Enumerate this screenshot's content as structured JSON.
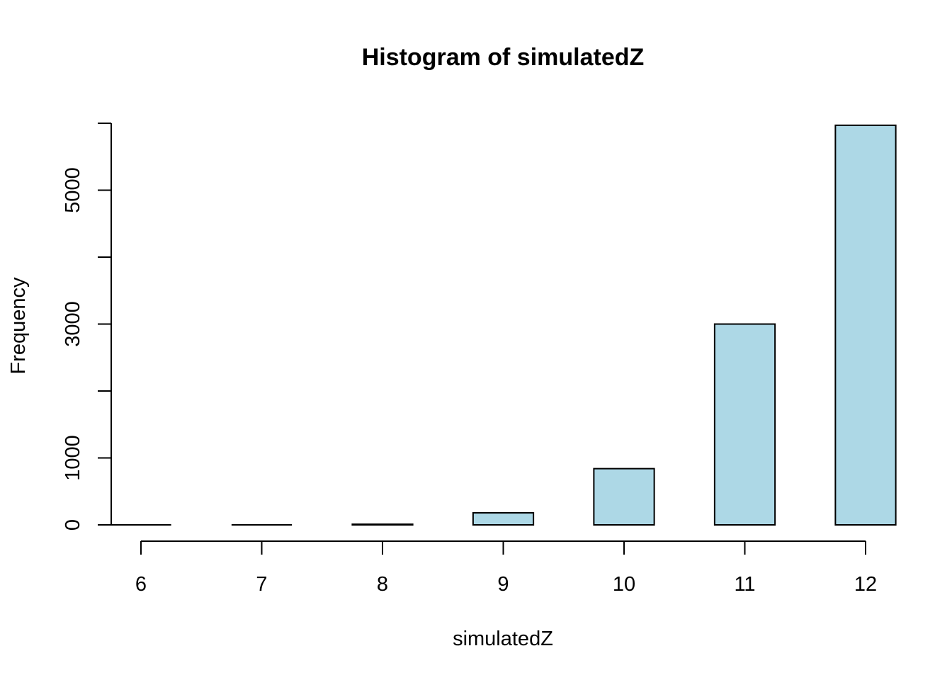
{
  "chart_data": {
    "type": "bar",
    "title": "Histogram of simulatedZ",
    "xlabel": "simulatedZ",
    "ylabel": "Frequency",
    "bins": [
      {
        "from": 5.75,
        "to": 6.25,
        "value": 0
      },
      {
        "from": 6.75,
        "to": 7.25,
        "value": 0
      },
      {
        "from": 7.75,
        "to": 8.25,
        "value": 10
      },
      {
        "from": 8.75,
        "to": 9.25,
        "value": 180
      },
      {
        "from": 9.75,
        "to": 10.25,
        "value": 840
      },
      {
        "from": 10.75,
        "to": 11.25,
        "value": 3000
      },
      {
        "from": 11.75,
        "to": 12.25,
        "value": 5970
      }
    ],
    "x_ticks": [
      6,
      7,
      8,
      9,
      10,
      11,
      12
    ],
    "y_ticks_major": [
      0,
      1000,
      3000,
      5000
    ],
    "y_ticks_minor": [
      2000,
      4000,
      6000
    ],
    "xlim": [
      6,
      12
    ],
    "ylim": [
      0,
      6000
    ],
    "grid": false,
    "legend": "none",
    "bar_color": "#add8e6"
  }
}
